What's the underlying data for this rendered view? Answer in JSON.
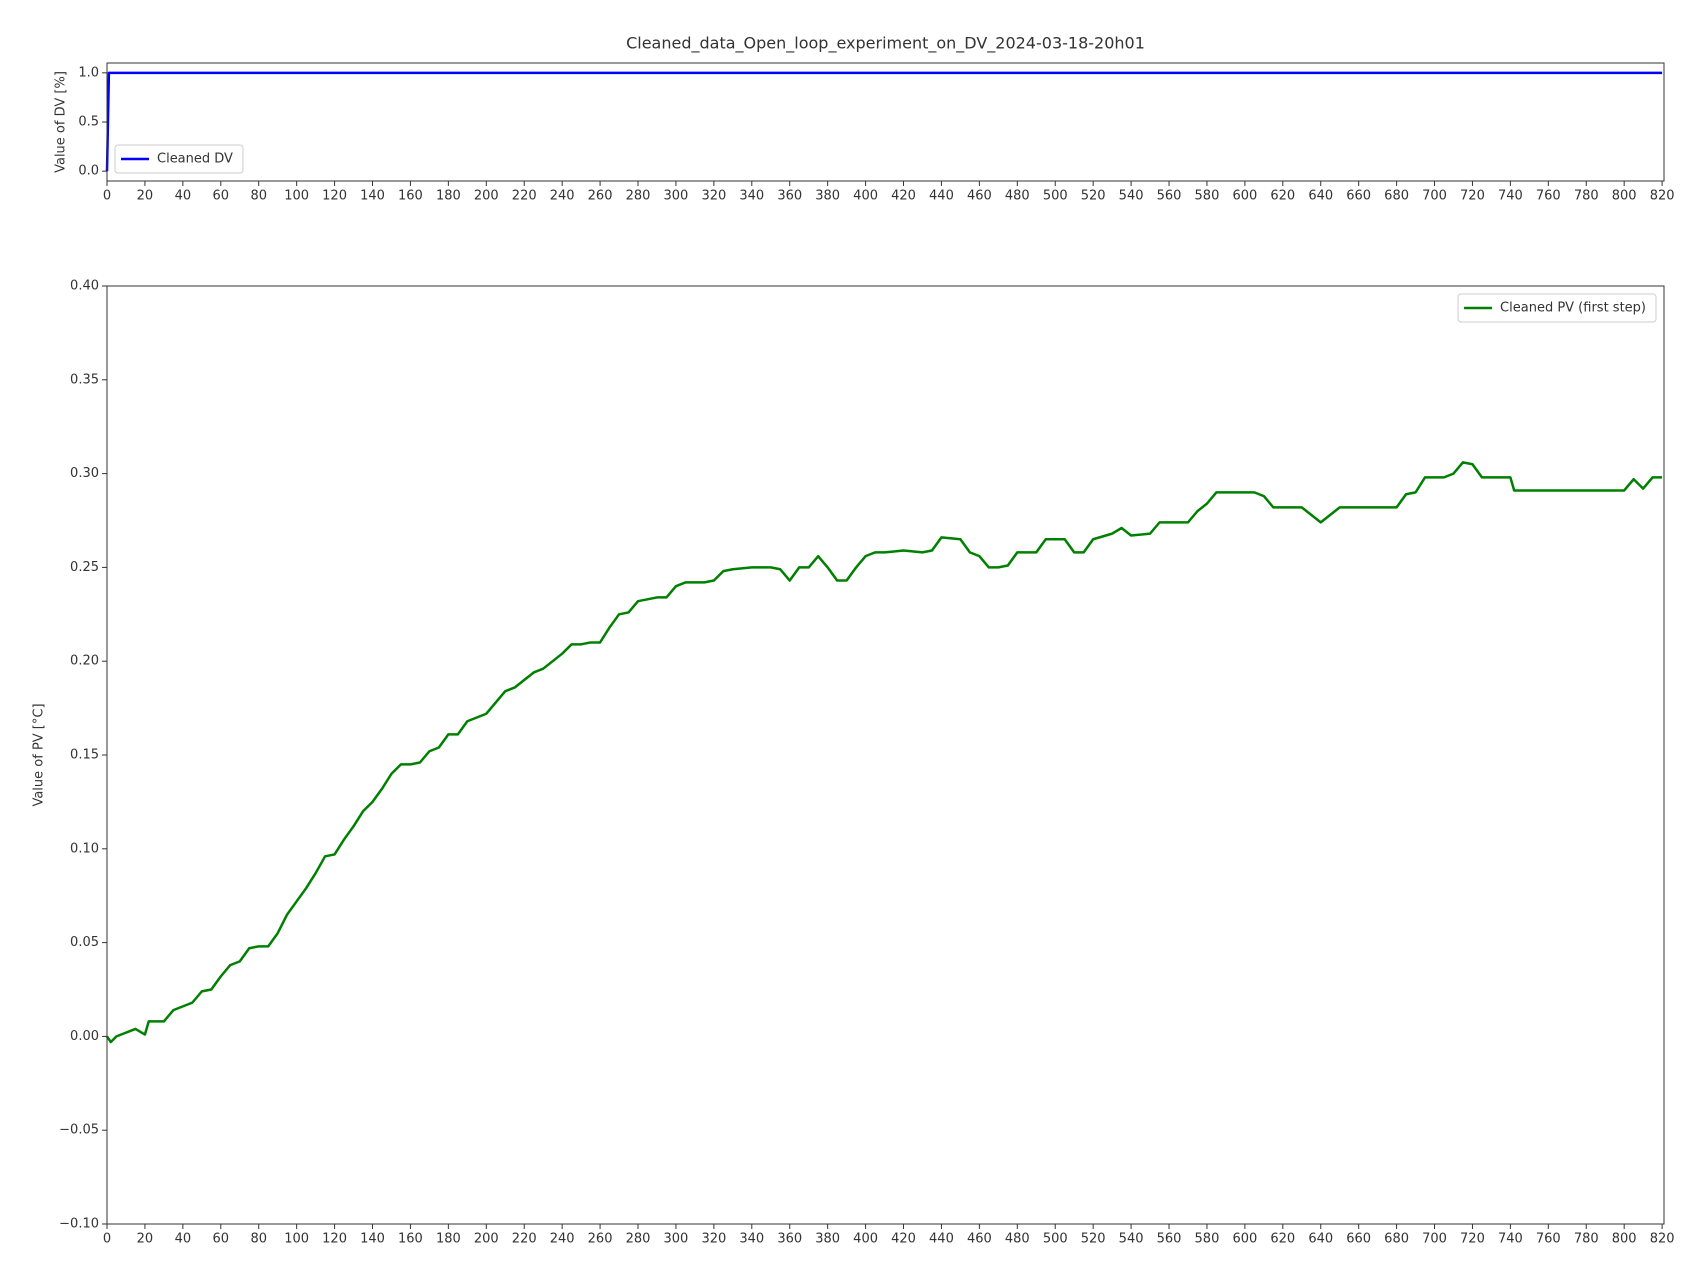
{
  "chart_data": [
    {
      "type": "line",
      "title": "Cleaned_data_Open_loop_experiment_on_DV_2024-03-18-20h01",
      "y_label": "Value of DV [%]",
      "xlim": [
        0,
        821
      ],
      "xticks": [
        0,
        20,
        40,
        60,
        80,
        100,
        120,
        140,
        160,
        180,
        200,
        220,
        240,
        260,
        280,
        300,
        320,
        340,
        360,
        380,
        400,
        420,
        440,
        460,
        480,
        500,
        520,
        540,
        560,
        580,
        600,
        620,
        640,
        660,
        680,
        700,
        720,
        740,
        760,
        780,
        800,
        820
      ],
      "ylim": [
        -0.1,
        1.1
      ],
      "yticks": [
        {
          "value": 0,
          "label": "0.0"
        },
        {
          "value": 0.5,
          "label": "0.5"
        },
        {
          "value": 1,
          "label": "1.0"
        }
      ],
      "legend": "lower left",
      "series": [
        {
          "name": "Cleaned DV",
          "color": "#0000ff",
          "x": [
            0,
            1,
            820
          ],
          "values": [
            0,
            1,
            1
          ]
        }
      ]
    },
    {
      "type": "line",
      "y_label": "Value of PV [°C]",
      "xlim": [
        0,
        821
      ],
      "xticks": [
        0,
        20,
        40,
        60,
        80,
        100,
        120,
        140,
        160,
        180,
        200,
        220,
        240,
        260,
        280,
        300,
        320,
        340,
        360,
        380,
        400,
        420,
        440,
        460,
        480,
        500,
        520,
        540,
        560,
        580,
        600,
        620,
        640,
        660,
        680,
        700,
        720,
        740,
        760,
        780,
        800,
        820
      ],
      "ylim": [
        -0.1,
        0.4
      ],
      "yticks": [
        {
          "value": -0.1,
          "label": "−0.10"
        },
        {
          "value": -0.05,
          "label": "−0.05"
        },
        {
          "value": 0,
          "label": "0.00"
        },
        {
          "value": 0.05,
          "label": "0.05"
        },
        {
          "value": 0.1,
          "label": "0.10"
        },
        {
          "value": 0.15,
          "label": "0.15"
        },
        {
          "value": 0.2,
          "label": "0.20"
        },
        {
          "value": 0.25,
          "label": "0.25"
        },
        {
          "value": 0.3,
          "label": "0.30"
        },
        {
          "value": 0.35,
          "label": "0.35"
        },
        {
          "value": 0.4,
          "label": "0.40"
        }
      ],
      "legend": "upper right",
      "series": [
        {
          "name": "Cleaned PV (first step)",
          "color": "#008000",
          "x": [
            0,
            2,
            5,
            10,
            15,
            20,
            22,
            30,
            35,
            40,
            45,
            50,
            55,
            60,
            65,
            70,
            75,
            80,
            85,
            90,
            95,
            100,
            105,
            110,
            115,
            120,
            125,
            130,
            135,
            140,
            145,
            150,
            155,
            160,
            165,
            170,
            175,
            180,
            185,
            190,
            195,
            200,
            205,
            210,
            215,
            220,
            225,
            230,
            235,
            240,
            245,
            250,
            255,
            260,
            265,
            270,
            275,
            280,
            285,
            290,
            295,
            300,
            305,
            310,
            315,
            320,
            325,
            330,
            340,
            350,
            355,
            360,
            365,
            370,
            375,
            380,
            385,
            390,
            395,
            400,
            405,
            410,
            420,
            430,
            435,
            440,
            450,
            455,
            460,
            465,
            470,
            475,
            480,
            490,
            495,
            505,
            510,
            515,
            520,
            530,
            535,
            540,
            550,
            555,
            570,
            575,
            580,
            585,
            605,
            610,
            615,
            630,
            635,
            640,
            645,
            650,
            680,
            685,
            690,
            695,
            705,
            710,
            715,
            720,
            725,
            740,
            742,
            800,
            805,
            810,
            815,
            820
          ],
          "values": [
            0,
            -0.003,
            0,
            0.002,
            0.004,
            0.001,
            0.008,
            0.008,
            0.014,
            0.016,
            0.018,
            0.024,
            0.025,
            0.032,
            0.038,
            0.04,
            0.047,
            0.048,
            0.048,
            0.055,
            0.065,
            0.072,
            0.079,
            0.087,
            0.096,
            0.097,
            0.105,
            0.112,
            0.12,
            0.125,
            0.132,
            0.14,
            0.145,
            0.145,
            0.146,
            0.152,
            0.154,
            0.161,
            0.161,
            0.168,
            0.17,
            0.172,
            0.178,
            0.184,
            0.186,
            0.19,
            0.194,
            0.196,
            0.2,
            0.204,
            0.209,
            0.209,
            0.21,
            0.21,
            0.218,
            0.225,
            0.226,
            0.232,
            0.233,
            0.234,
            0.234,
            0.24,
            0.242,
            0.242,
            0.242,
            0.243,
            0.248,
            0.249,
            0.25,
            0.25,
            0.249,
            0.243,
            0.25,
            0.25,
            0.256,
            0.25,
            0.243,
            0.243,
            0.25,
            0.256,
            0.258,
            0.258,
            0.259,
            0.258,
            0.259,
            0.266,
            0.265,
            0.258,
            0.256,
            0.25,
            0.25,
            0.251,
            0.258,
            0.258,
            0.265,
            0.265,
            0.258,
            0.258,
            0.265,
            0.268,
            0.271,
            0.267,
            0.268,
            0.274,
            0.274,
            0.28,
            0.284,
            0.29,
            0.29,
            0.288,
            0.282,
            0.282,
            0.278,
            0.274,
            0.278,
            0.282,
            0.282,
            0.289,
            0.29,
            0.298,
            0.298,
            0.3,
            0.306,
            0.305,
            0.298,
            0.298,
            0.291,
            0.291,
            0.297,
            0.292,
            0.298,
            0.298
          ]
        }
      ]
    }
  ]
}
